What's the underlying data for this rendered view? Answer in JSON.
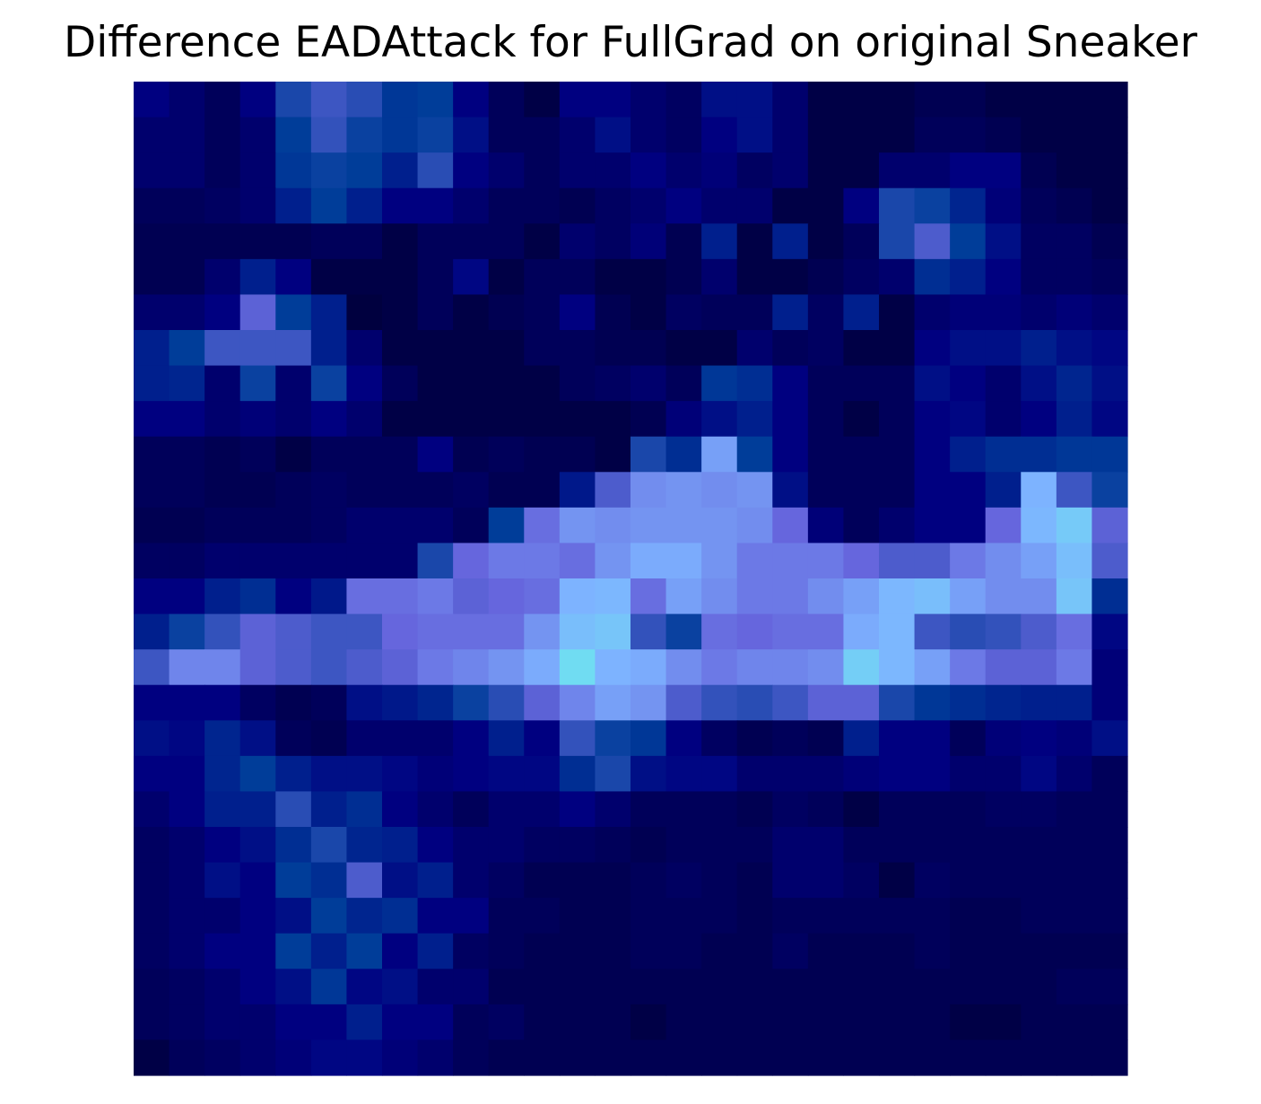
{
  "chart_data": {
    "type": "heatmap",
    "title": "Difference EADAttack for FullGrad on original Sneaker",
    "xlabel": "",
    "ylabel": "",
    "axes_visible": false,
    "grid": false,
    "legend": "none",
    "dims": [
      28,
      28
    ],
    "colormap": [
      "#000033",
      "#000080",
      "#003d99",
      "#6666dd",
      "#7db3ff",
      "#6ee0f0"
    ],
    "channel_scale": [
      1,
      1,
      1
    ],
    "cells": [
      [
        0.2,
        0.15,
        0.1,
        0.2,
        0.45,
        0.52,
        0.48,
        0.38,
        0.4,
        0.2,
        0.1,
        0.05,
        0.2,
        0.2,
        0.15,
        0.12,
        0.25,
        0.25,
        0.15,
        0.05,
        0.05,
        0.05,
        0.08,
        0.08,
        0.05,
        0.05,
        0.05,
        0.05
      ],
      [
        0.15,
        0.15,
        0.1,
        0.15,
        0.4,
        0.5,
        0.42,
        0.38,
        0.42,
        0.25,
        0.1,
        0.1,
        0.15,
        0.25,
        0.15,
        0.12,
        0.2,
        0.25,
        0.15,
        0.05,
        0.05,
        0.05,
        0.1,
        0.1,
        0.08,
        0.05,
        0.05,
        0.05
      ],
      [
        0.15,
        0.15,
        0.1,
        0.15,
        0.38,
        0.42,
        0.4,
        0.3,
        0.48,
        0.2,
        0.15,
        0.1,
        0.15,
        0.15,
        0.2,
        0.15,
        0.18,
        0.12,
        0.15,
        0.05,
        0.05,
        0.15,
        0.15,
        0.2,
        0.2,
        0.08,
        0.05,
        0.05
      ],
      [
        0.1,
        0.1,
        0.12,
        0.15,
        0.3,
        0.4,
        0.3,
        0.2,
        0.2,
        0.15,
        0.1,
        0.1,
        0.08,
        0.12,
        0.15,
        0.2,
        0.15,
        0.15,
        0.05,
        0.05,
        0.2,
        0.45,
        0.42,
        0.32,
        0.18,
        0.1,
        0.08,
        0.05
      ],
      [
        0.08,
        0.08,
        0.08,
        0.08,
        0.08,
        0.1,
        0.1,
        0.05,
        0.1,
        0.1,
        0.1,
        0.05,
        0.15,
        0.12,
        0.18,
        0.08,
        0.3,
        0.05,
        0.3,
        0.05,
        0.1,
        0.45,
        0.55,
        0.4,
        0.25,
        0.12,
        0.12,
        0.08
      ],
      [
        0.08,
        0.08,
        0.15,
        0.3,
        0.2,
        0.05,
        0.05,
        0.05,
        0.1,
        0.22,
        0.05,
        0.1,
        0.1,
        0.05,
        0.05,
        0.08,
        0.15,
        0.05,
        0.05,
        0.08,
        0.12,
        0.15,
        0.35,
        0.3,
        0.2,
        0.12,
        0.12,
        0.1
      ],
      [
        0.15,
        0.15,
        0.2,
        0.58,
        0.4,
        0.3,
        0.03,
        0.05,
        0.1,
        0.05,
        0.08,
        0.1,
        0.2,
        0.08,
        0.05,
        0.12,
        0.1,
        0.1,
        0.3,
        0.12,
        0.3,
        0.05,
        0.15,
        0.18,
        0.18,
        0.15,
        0.18,
        0.15
      ],
      [
        0.3,
        0.4,
        0.52,
        0.52,
        0.52,
        0.3,
        0.15,
        0.05,
        0.05,
        0.05,
        0.05,
        0.1,
        0.1,
        0.08,
        0.08,
        0.05,
        0.05,
        0.15,
        0.1,
        0.12,
        0.05,
        0.05,
        0.2,
        0.25,
        0.25,
        0.3,
        0.25,
        0.22
      ],
      [
        0.3,
        0.32,
        0.15,
        0.42,
        0.15,
        0.42,
        0.2,
        0.1,
        0.05,
        0.05,
        0.05,
        0.05,
        0.1,
        0.12,
        0.15,
        0.1,
        0.38,
        0.35,
        0.2,
        0.1,
        0.1,
        0.1,
        0.25,
        0.2,
        0.15,
        0.25,
        0.32,
        0.25
      ],
      [
        0.2,
        0.2,
        0.15,
        0.18,
        0.15,
        0.2,
        0.15,
        0.05,
        0.05,
        0.05,
        0.05,
        0.05,
        0.05,
        0.05,
        0.08,
        0.18,
        0.25,
        0.3,
        0.2,
        0.1,
        0.05,
        0.1,
        0.2,
        0.22,
        0.15,
        0.2,
        0.3,
        0.22
      ],
      [
        0.1,
        0.1,
        0.08,
        0.1,
        0.05,
        0.1,
        0.1,
        0.1,
        0.2,
        0.08,
        0.1,
        0.08,
        0.08,
        0.05,
        0.45,
        0.35,
        0.75,
        0.4,
        0.2,
        0.1,
        0.1,
        0.1,
        0.2,
        0.3,
        0.35,
        0.35,
        0.38,
        0.38
      ],
      [
        0.1,
        0.1,
        0.08,
        0.08,
        0.1,
        0.12,
        0.1,
        0.1,
        0.1,
        0.12,
        0.08,
        0.08,
        0.28,
        0.55,
        0.7,
        0.72,
        0.7,
        0.72,
        0.25,
        0.1,
        0.1,
        0.1,
        0.2,
        0.2,
        0.3,
        0.8,
        0.52,
        0.42
      ],
      [
        0.08,
        0.08,
        0.1,
        0.1,
        0.1,
        0.12,
        0.15,
        0.15,
        0.15,
        0.1,
        0.4,
        0.62,
        0.72,
        0.7,
        0.72,
        0.72,
        0.72,
        0.7,
        0.6,
        0.18,
        0.1,
        0.15,
        0.2,
        0.2,
        0.6,
        0.82,
        0.9,
        0.58
      ],
      [
        0.12,
        0.12,
        0.15,
        0.15,
        0.15,
        0.15,
        0.15,
        0.15,
        0.45,
        0.6,
        0.65,
        0.65,
        0.62,
        0.72,
        0.78,
        0.78,
        0.72,
        0.65,
        0.65,
        0.65,
        0.6,
        0.55,
        0.55,
        0.65,
        0.7,
        0.75,
        0.85,
        0.55
      ],
      [
        0.2,
        0.2,
        0.3,
        0.35,
        0.2,
        0.28,
        0.62,
        0.62,
        0.65,
        0.58,
        0.6,
        0.62,
        0.8,
        0.82,
        0.62,
        0.75,
        0.7,
        0.65,
        0.65,
        0.7,
        0.75,
        0.82,
        0.85,
        0.75,
        0.7,
        0.7,
        0.88,
        0.35
      ],
      [
        0.3,
        0.42,
        0.5,
        0.58,
        0.55,
        0.52,
        0.52,
        0.6,
        0.62,
        0.62,
        0.62,
        0.72,
        0.85,
        0.88,
        0.5,
        0.42,
        0.62,
        0.6,
        0.62,
        0.62,
        0.78,
        0.82,
        0.52,
        0.48,
        0.5,
        0.55,
        0.62,
        0.22
      ],
      [
        0.52,
        0.68,
        0.68,
        0.58,
        0.55,
        0.52,
        0.55,
        0.58,
        0.65,
        0.68,
        0.72,
        0.78,
        0.98,
        0.8,
        0.78,
        0.7,
        0.65,
        0.68,
        0.68,
        0.7,
        0.92,
        0.82,
        0.75,
        0.65,
        0.58,
        0.58,
        0.65,
        0.18
      ],
      [
        0.2,
        0.2,
        0.2,
        0.12,
        0.08,
        0.1,
        0.25,
        0.28,
        0.32,
        0.42,
        0.48,
        0.58,
        0.68,
        0.75,
        0.72,
        0.55,
        0.5,
        0.48,
        0.52,
        0.58,
        0.58,
        0.45,
        0.38,
        0.35,
        0.32,
        0.3,
        0.3,
        0.18
      ],
      [
        0.25,
        0.22,
        0.32,
        0.25,
        0.1,
        0.08,
        0.15,
        0.15,
        0.15,
        0.2,
        0.3,
        0.2,
        0.5,
        0.42,
        0.38,
        0.2,
        0.12,
        0.08,
        0.1,
        0.08,
        0.3,
        0.2,
        0.2,
        0.1,
        0.18,
        0.2,
        0.18,
        0.25
      ],
      [
        0.2,
        0.2,
        0.32,
        0.4,
        0.3,
        0.25,
        0.25,
        0.22,
        0.18,
        0.2,
        0.22,
        0.22,
        0.35,
        0.45,
        0.25,
        0.22,
        0.22,
        0.15,
        0.15,
        0.15,
        0.18,
        0.2,
        0.2,
        0.15,
        0.15,
        0.22,
        0.15,
        0.1
      ],
      [
        0.15,
        0.2,
        0.3,
        0.3,
        0.48,
        0.3,
        0.35,
        0.2,
        0.15,
        0.1,
        0.15,
        0.15,
        0.2,
        0.15,
        0.1,
        0.1,
        0.1,
        0.08,
        0.12,
        0.1,
        0.05,
        0.1,
        0.1,
        0.1,
        0.12,
        0.12,
        0.1,
        0.1
      ],
      [
        0.12,
        0.15,
        0.2,
        0.25,
        0.35,
        0.45,
        0.32,
        0.3,
        0.2,
        0.15,
        0.15,
        0.12,
        0.12,
        0.1,
        0.08,
        0.1,
        0.1,
        0.1,
        0.15,
        0.15,
        0.1,
        0.1,
        0.1,
        0.1,
        0.1,
        0.1,
        0.1,
        0.1
      ],
      [
        0.12,
        0.15,
        0.25,
        0.2,
        0.4,
        0.35,
        0.55,
        0.25,
        0.3,
        0.15,
        0.12,
        0.08,
        0.08,
        0.08,
        0.1,
        0.12,
        0.1,
        0.08,
        0.15,
        0.15,
        0.12,
        0.05,
        0.12,
        0.1,
        0.1,
        0.1,
        0.1,
        0.1
      ],
      [
        0.12,
        0.15,
        0.15,
        0.2,
        0.25,
        0.4,
        0.32,
        0.35,
        0.2,
        0.2,
        0.1,
        0.1,
        0.08,
        0.08,
        0.1,
        0.1,
        0.1,
        0.08,
        0.1,
        0.1,
        0.1,
        0.1,
        0.1,
        0.08,
        0.08,
        0.1,
        0.1,
        0.1
      ],
      [
        0.12,
        0.15,
        0.2,
        0.2,
        0.4,
        0.3,
        0.4,
        0.2,
        0.3,
        0.12,
        0.1,
        0.08,
        0.08,
        0.08,
        0.1,
        0.1,
        0.08,
        0.08,
        0.12,
        0.08,
        0.08,
        0.08,
        0.1,
        0.08,
        0.08,
        0.08,
        0.08,
        0.08
      ],
      [
        0.1,
        0.12,
        0.15,
        0.2,
        0.25,
        0.38,
        0.22,
        0.25,
        0.15,
        0.15,
        0.08,
        0.08,
        0.08,
        0.08,
        0.08,
        0.08,
        0.08,
        0.08,
        0.08,
        0.08,
        0.08,
        0.08,
        0.08,
        0.08,
        0.08,
        0.08,
        0.1,
        0.1
      ],
      [
        0.1,
        0.12,
        0.15,
        0.15,
        0.2,
        0.2,
        0.3,
        0.2,
        0.2,
        0.1,
        0.12,
        0.08,
        0.08,
        0.08,
        0.05,
        0.08,
        0.08,
        0.08,
        0.08,
        0.08,
        0.08,
        0.08,
        0.08,
        0.05,
        0.05,
        0.08,
        0.08,
        0.08
      ],
      [
        0.05,
        0.1,
        0.12,
        0.15,
        0.18,
        0.22,
        0.22,
        0.18,
        0.15,
        0.1,
        0.08,
        0.08,
        0.08,
        0.08,
        0.08,
        0.08,
        0.08,
        0.08,
        0.08,
        0.08,
        0.08,
        0.08,
        0.08,
        0.08,
        0.08,
        0.08,
        0.08,
        0.08
      ]
    ]
  }
}
